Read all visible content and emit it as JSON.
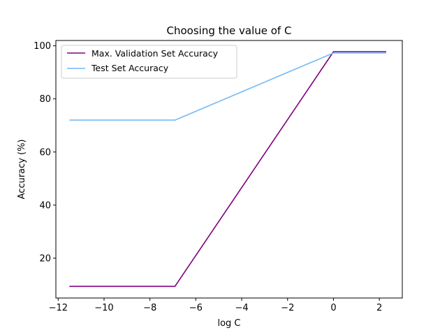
{
  "chart_data": {
    "type": "line",
    "title": "Choosing the value of C",
    "xlabel": "log C",
    "ylabel": "Accuracy (%)",
    "xlim": [
      -12.1,
      3.0
    ],
    "ylim": [
      5.0,
      102.0
    ],
    "xticks": [
      -12,
      -10,
      -8,
      -6,
      -4,
      -2,
      0,
      2
    ],
    "xtick_labels": [
      "−12",
      "−10",
      "−8",
      "−6",
      "−4",
      "−2",
      "0",
      "2"
    ],
    "yticks": [
      20,
      40,
      60,
      80,
      100
    ],
    "ytick_labels": [
      "20",
      "40",
      "60",
      "80",
      "100"
    ],
    "grid": false,
    "legend_position": "upper-left",
    "series": [
      {
        "name": "Max. Validation Set Accuracy",
        "color": "#800080",
        "x": [
          -11.51,
          -6.91,
          0.0,
          2.3
        ],
        "y": [
          9.4,
          9.4,
          97.8,
          97.8
        ]
      },
      {
        "name": "Test Set Accuracy",
        "color": "#74b9f5",
        "x": [
          -11.51,
          -6.91,
          0.0,
          2.3
        ],
        "y": [
          72.0,
          72.0,
          97.3,
          97.3
        ]
      }
    ]
  }
}
